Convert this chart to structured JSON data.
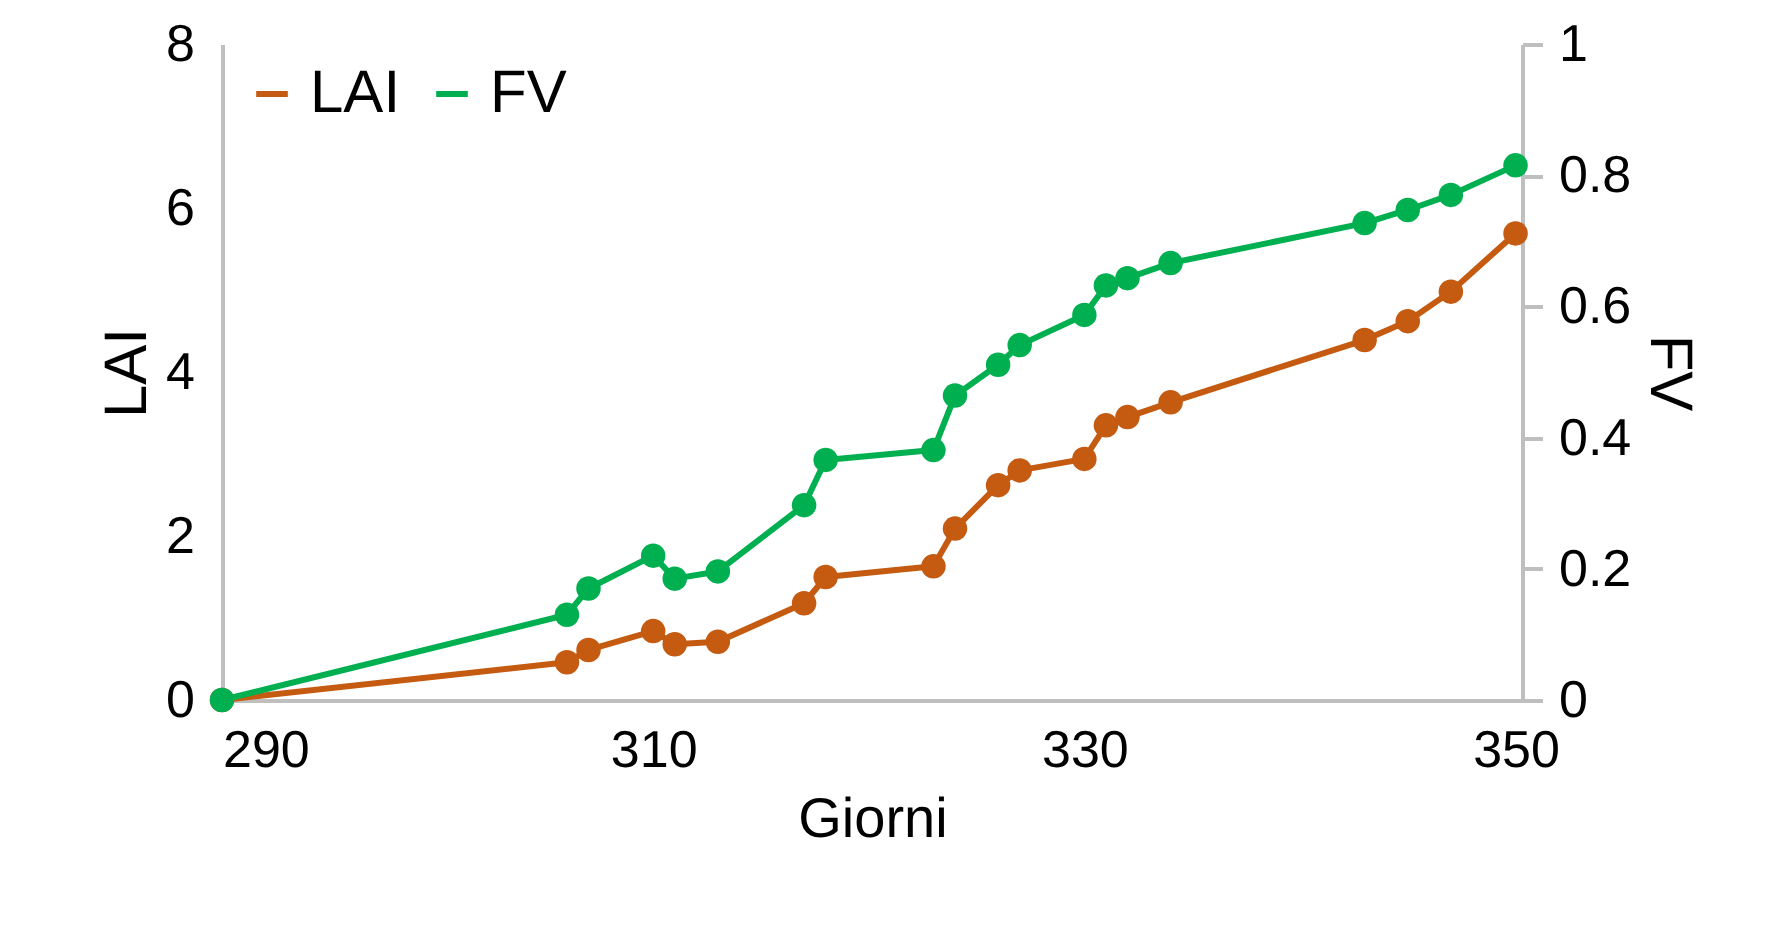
{
  "chart_data": {
    "type": "line",
    "xlabel": "Giorni",
    "ylabel": "LAI",
    "y2label": "FV",
    "xlim": [
      290,
      350.3
    ],
    "xticks": [
      290,
      310,
      330,
      350
    ],
    "ylim": [
      0,
      8
    ],
    "yticks": [
      0,
      2,
      4,
      6,
      8
    ],
    "y2lim": [
      0,
      1
    ],
    "y2ticks": [
      0,
      0.2,
      0.4,
      0.6,
      0.8,
      1
    ],
    "grid": false,
    "legend": "top left",
    "marker": "circle",
    "line_style": "solid",
    "series": [
      {
        "name": "LAI",
        "color": "#c55a11",
        "x": [
          290,
          306,
          307,
          310,
          311,
          313,
          317,
          318,
          323,
          324,
          326,
          327,
          330,
          331,
          332,
          334,
          343,
          345,
          347,
          350
        ],
        "values": [
          0,
          0.46,
          0.61,
          0.84,
          0.68,
          0.71,
          1.18,
          1.5,
          1.63,
          2.09,
          2.62,
          2.8,
          2.94,
          3.35,
          3.45,
          3.63,
          4.39,
          4.62,
          4.98,
          5.69
        ]
      },
      {
        "name": "FV",
        "color": "#00b050",
        "axis": "y2",
        "x": [
          290,
          306,
          307,
          310,
          311,
          313,
          317,
          318,
          323,
          324,
          326,
          327,
          330,
          331,
          332,
          334,
          343,
          345,
          347,
          350
        ],
        "values": [
          0,
          0.13,
          0.17,
          0.22,
          0.185,
          0.196,
          0.297,
          0.366,
          0.381,
          0.464,
          0.511,
          0.541,
          0.587,
          0.632,
          0.643,
          0.666,
          0.727,
          0.747,
          0.77,
          0.815
        ]
      }
    ]
  }
}
